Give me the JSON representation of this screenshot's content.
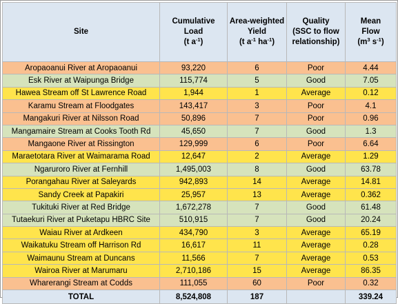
{
  "header": {
    "site": "Site",
    "load": [
      "Cumulative",
      "Load",
      "(t a<sup>-1</sup>)"
    ],
    "yield": [
      "Area-weighted",
      "Yield",
      "(t a<sup>-1</sup> ha<sup>-1</sup>)"
    ],
    "quality": [
      "Quality",
      "(SSC to flow",
      "relationship)"
    ],
    "flow": [
      "Mean",
      "Flow",
      "(m<sup>3</sup> s<sup>-1</sup>)"
    ]
  },
  "rows": [
    {
      "site": "Aropaoanui River at Aropaoanui",
      "load": "93,220",
      "yield": "6",
      "quality": "Poor",
      "flow": "4.44"
    },
    {
      "site": "Esk River at Waipunga Bridge",
      "load": "115,774",
      "yield": "5",
      "quality": "Good",
      "flow": "7.05"
    },
    {
      "site": "Hawea Stream off St Lawrence Road",
      "load": "1,944",
      "yield": "1",
      "quality": "Average",
      "flow": "0.12"
    },
    {
      "site": "Karamu Stream at Floodgates",
      "load": "143,417",
      "yield": "3",
      "quality": "Poor",
      "flow": "4.1"
    },
    {
      "site": "Mangakuri River at Nilsson Road",
      "load": "50,896",
      "yield": "7",
      "quality": "Poor",
      "flow": "0.96"
    },
    {
      "site": "Mangamaire Stream at Cooks Tooth Rd",
      "load": "45,650",
      "yield": "7",
      "quality": "Good",
      "flow": "1.3"
    },
    {
      "site": "Mangaone River at Rissington",
      "load": "129,999",
      "yield": "6",
      "quality": "Poor",
      "flow": "6.64"
    },
    {
      "site": "Maraetotara River at Waimarama Road",
      "load": "12,647",
      "yield": "2",
      "quality": "Average",
      "flow": "1.29"
    },
    {
      "site": "Ngaruroro River at Fernhill",
      "load": "1,495,003",
      "yield": "8",
      "quality": "Good",
      "flow": "63.78"
    },
    {
      "site": "Porangahau River at Saleyards",
      "load": "942,893",
      "yield": "14",
      "quality": "Average",
      "flow": "14.81"
    },
    {
      "site": "Sandy Creek at Papakiri",
      "load": "25,957",
      "yield": "13",
      "quality": "Average",
      "flow": "0.362"
    },
    {
      "site": "Tukituki River at Red Bridge",
      "load": "1,672,278",
      "yield": "7",
      "quality": "Good",
      "flow": "61.48"
    },
    {
      "site": "Tutaekuri River at Puketapu HBRC Site",
      "load": "510,915",
      "yield": "7",
      "quality": "Good",
      "flow": "20.24"
    },
    {
      "site": "Waiau River at Ardkeen",
      "load": "434,790",
      "yield": "3",
      "quality": "Average",
      "flow": "65.19"
    },
    {
      "site": "Waikatuku Stream off Harrison Rd",
      "load": "16,617",
      "yield": "11",
      "quality": "Average",
      "flow": "0.28"
    },
    {
      "site": "Waimaunu Stream at Duncans",
      "load": "11,566",
      "yield": "7",
      "quality": "Average",
      "flow": "0.53"
    },
    {
      "site": "Wairoa River at Marumaru",
      "load": "2,710,186",
      "yield": "15",
      "quality": "Average",
      "flow": "86.35"
    },
    {
      "site": "Wharerangi Stream at Codds",
      "load": "111,055",
      "yield": "60",
      "quality": "Poor",
      "flow": "0.32"
    }
  ],
  "total": {
    "site": "TOTAL",
    "load": "8,524,808",
    "yield": "187",
    "quality": "",
    "flow": "339.24"
  },
  "colors": {
    "poor": "#fac090",
    "good": "#d6e3bc",
    "average": "#ffe44c",
    "header": "#dce6f1"
  }
}
